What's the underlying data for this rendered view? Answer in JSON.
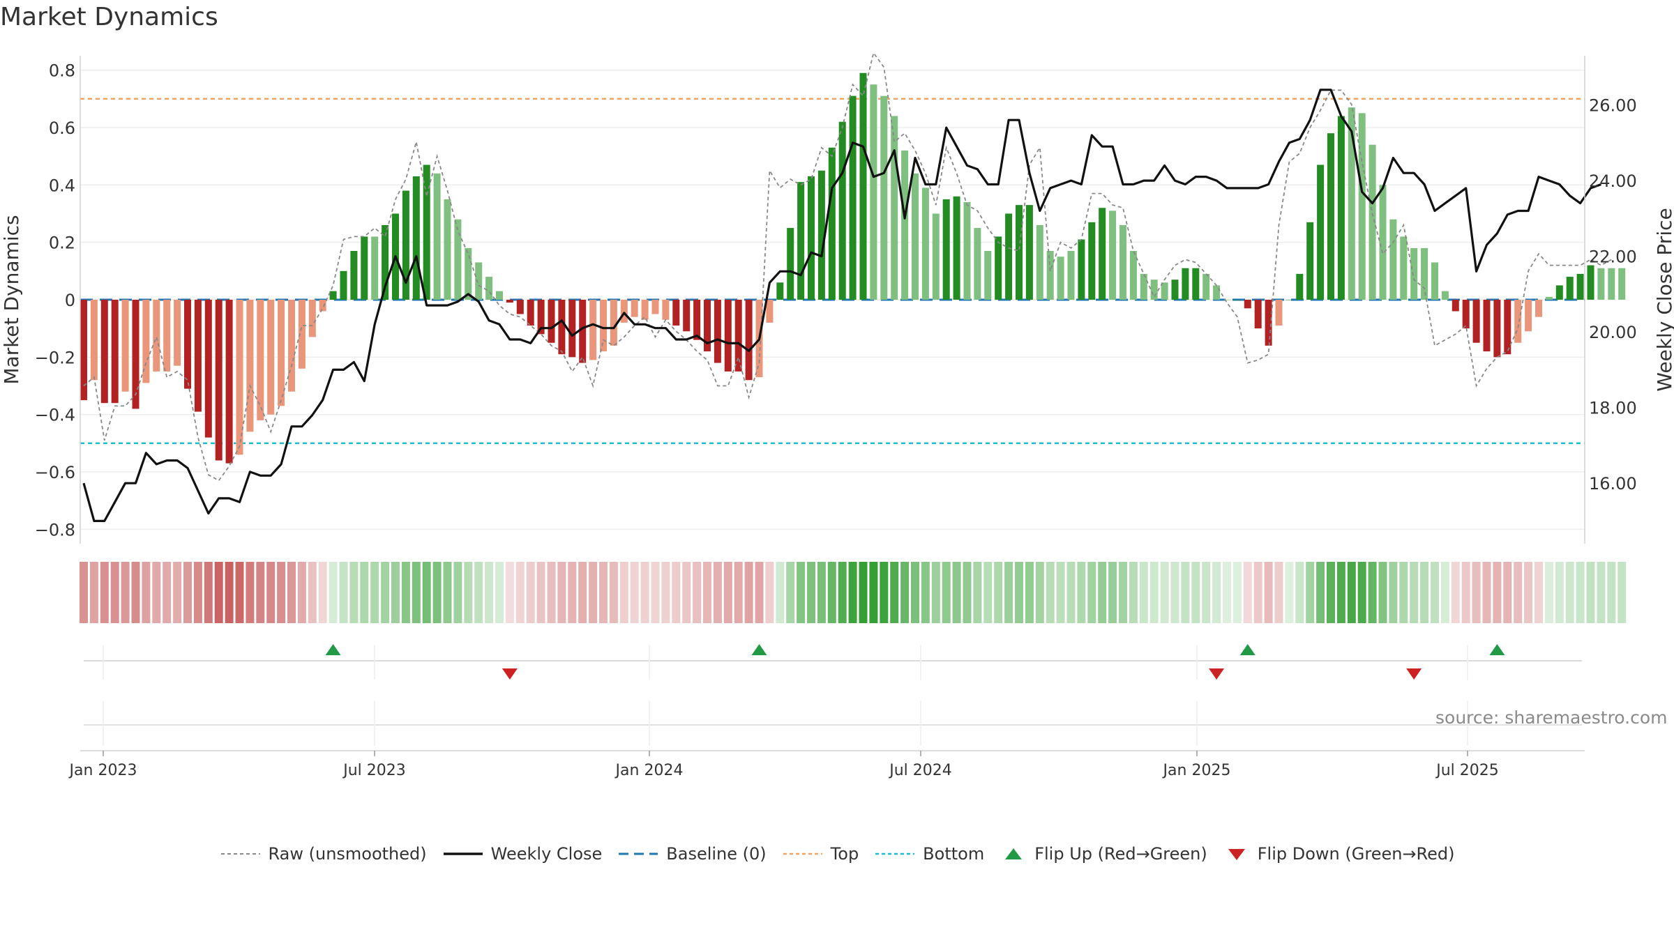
{
  "chart_data": {
    "type": "bar",
    "title": "Market Dynamics",
    "source": "source: sharemaestro.com",
    "ylabel": "Market Dynamics",
    "ylabel_right": "Weekly Close Price",
    "ylim": [
      -0.85,
      0.85
    ],
    "ylim_right": [
      14.4,
      27.3
    ],
    "y_ticks": [
      -0.8,
      -0.6,
      -0.4,
      -0.2,
      0,
      0.2,
      0.4,
      0.6,
      0.8
    ],
    "y_tick_labels": [
      "−0.8",
      "−0.6",
      "−0.4",
      "−0.2",
      "0",
      "0.2",
      "0.4",
      "0.6",
      "0.8"
    ],
    "y_ticks_right": [
      16,
      18,
      20,
      22,
      24,
      26
    ],
    "y_tick_labels_right": [
      "16.00",
      "18.00",
      "20.00",
      "22.00",
      "24.00",
      "26.00"
    ],
    "x_tick_labels": [
      "Jan 2023",
      "Jul 2023",
      "Jan 2024",
      "Jul 2024",
      "Jan 2025",
      "Jul 2025"
    ],
    "x_tick_weeks": [
      0,
      26,
      52,
      78,
      104,
      130
    ],
    "first_week": "2023-01-02",
    "top_level": 0.7,
    "bottom_level": -0.5,
    "baseline": 0,
    "bar_colors": {
      "strong_red": "#b22222",
      "weak_red": "#e9967a",
      "strong_green": "#228b22",
      "weak_green": "#7fbf7f"
    },
    "line_colors": {
      "close": "#111111",
      "raw": "#888888",
      "baseline": "#1f77b4",
      "top": "#f4a460",
      "bottom": "#17becf",
      "flip_up": "#229944",
      "flip_down": "#cc2222"
    },
    "bar_values": [
      -0.35,
      -0.28,
      -0.36,
      -0.36,
      -0.32,
      -0.38,
      -0.29,
      -0.25,
      -0.25,
      -0.23,
      -0.31,
      -0.39,
      -0.48,
      -0.56,
      -0.57,
      -0.54,
      -0.46,
      -0.42,
      -0.4,
      -0.37,
      -0.32,
      -0.24,
      -0.13,
      -0.04,
      0.03,
      0.1,
      0.17,
      0.22,
      0.22,
      0.26,
      0.3,
      0.38,
      0.43,
      0.47,
      0.44,
      0.35,
      0.28,
      0.18,
      0.13,
      0.08,
      0.03,
      -0.01,
      -0.05,
      -0.09,
      -0.12,
      -0.15,
      -0.19,
      -0.2,
      -0.22,
      -0.21,
      -0.18,
      -0.16,
      -0.08,
      -0.06,
      -0.07,
      -0.05,
      -0.07,
      -0.09,
      -0.11,
      -0.14,
      -0.18,
      -0.22,
      -0.25,
      -0.25,
      -0.28,
      -0.27,
      -0.08,
      0.06,
      0.25,
      0.41,
      0.43,
      0.45,
      0.53,
      0.62,
      0.71,
      0.79,
      0.75,
      0.71,
      0.64,
      0.52,
      0.44,
      0.39,
      0.3,
      0.35,
      0.36,
      0.34,
      0.25,
      0.17,
      0.22,
      0.3,
      0.33,
      0.33,
      0.26,
      0.17,
      0.15,
      0.17,
      0.21,
      0.27,
      0.32,
      0.31,
      0.26,
      0.17,
      0.09,
      0.07,
      0.06,
      0.07,
      0.11,
      0.11,
      0.09,
      0.05,
      0,
      0,
      -0.03,
      -0.1,
      -0.16,
      -0.09,
      0,
      0.09,
      0.27,
      0.47,
      0.58,
      0.64,
      0.67,
      0.65,
      0.54,
      0.4,
      0.28,
      0.22,
      0.18,
      0.18,
      0.13,
      0.03,
      -0.04,
      -0.1,
      -0.15,
      -0.18,
      -0.2,
      -0.19,
      -0.15,
      -0.11,
      -0.06,
      0.01,
      0.05,
      0.08,
      0.09,
      0.12,
      0.11,
      0.11,
      0.11
    ],
    "bar_strength": [
      "s",
      "w",
      "s",
      "s",
      "w",
      "s",
      "w",
      "w",
      "w",
      "w",
      "s",
      "s",
      "s",
      "s",
      "s",
      "w",
      "w",
      "w",
      "w",
      "w",
      "w",
      "w",
      "w",
      "w",
      "s",
      "s",
      "s",
      "s",
      "w",
      "s",
      "s",
      "s",
      "s",
      "s",
      "w",
      "w",
      "w",
      "w",
      "w",
      "w",
      "w",
      "s",
      "s",
      "s",
      "s",
      "s",
      "s",
      "s",
      "s",
      "w",
      "w",
      "w",
      "w",
      "w",
      "w",
      "w",
      "w",
      "s",
      "s",
      "s",
      "s",
      "s",
      "s",
      "s",
      "s",
      "w",
      "w",
      "s",
      "s",
      "s",
      "s",
      "s",
      "s",
      "s",
      "s",
      "s",
      "w",
      "w",
      "w",
      "w",
      "w",
      "w",
      "w",
      "s",
      "s",
      "w",
      "w",
      "w",
      "s",
      "s",
      "s",
      "s",
      "w",
      "w",
      "w",
      "w",
      "s",
      "s",
      "s",
      "w",
      "w",
      "w",
      "w",
      "w",
      "w",
      "s",
      "s",
      "s",
      "w",
      "w",
      "w",
      "s",
      "s",
      "s",
      "s",
      "w",
      "s",
      "s",
      "s",
      "s",
      "s",
      "s",
      "w",
      "w",
      "w",
      "w",
      "w",
      "w",
      "w",
      "w",
      "w",
      "w",
      "s",
      "s",
      "s",
      "s",
      "s",
      "s",
      "w",
      "w",
      "w",
      "w",
      "s",
      "s",
      "s",
      "s",
      "w",
      "w",
      "w"
    ],
    "raw_values": [
      -0.3,
      -0.27,
      -0.49,
      -0.37,
      -0.37,
      -0.33,
      -0.22,
      -0.13,
      -0.27,
      -0.25,
      -0.28,
      -0.48,
      -0.61,
      -0.63,
      -0.58,
      -0.51,
      -0.3,
      -0.37,
      -0.46,
      -0.35,
      -0.23,
      -0.09,
      -0.09,
      -0.03,
      0.05,
      0.21,
      0.22,
      0.22,
      0.25,
      0.22,
      0.35,
      0.42,
      0.55,
      0.36,
      0.5,
      0.38,
      0.24,
      0.16,
      0.05,
      0.03,
      -0.02,
      -0.05,
      -0.06,
      -0.09,
      -0.12,
      -0.16,
      -0.18,
      -0.25,
      -0.2,
      -0.3,
      -0.14,
      -0.16,
      -0.13,
      -0.09,
      -0.06,
      -0.13,
      -0.07,
      -0.11,
      -0.14,
      -0.18,
      -0.21,
      -0.3,
      -0.3,
      -0.2,
      -0.34,
      -0.22,
      0.45,
      0.39,
      0.42,
      0.4,
      0.42,
      0.53,
      0.5,
      0.6,
      0.75,
      0.71,
      0.86,
      0.81,
      0.55,
      0.58,
      0.52,
      0.44,
      0.33,
      0.53,
      0.44,
      0.33,
      0.31,
      0.25,
      0.2,
      0.18,
      0.17,
      0.47,
      0.53,
      0.1,
      0.2,
      0.18,
      0.21,
      0.37,
      0.37,
      0.33,
      0.32,
      0.17,
      0.09,
      0.01,
      0.07,
      0.12,
      0.14,
      0.13,
      0.09,
      0.05,
      -0.01,
      -0.06,
      -0.22,
      -0.21,
      -0.19,
      0.26,
      0.48,
      0.51,
      0.6,
      0.66,
      0.73,
      0.73,
      0.68,
      0.48,
      0.3,
      0.16,
      0.2,
      0.26,
      0.07,
      0.04,
      -0.16,
      -0.14,
      -0.12,
      -0.09,
      -0.3,
      -0.24,
      -0.2,
      -0.18,
      -0.1,
      0.1,
      0.16,
      0.12,
      0.12,
      0.12,
      0.12,
      0.14,
      0.12,
      0.14
    ],
    "close_values": [
      16,
      15,
      15,
      15.5,
      16,
      16,
      16.8,
      16.5,
      16.6,
      16.6,
      16.4,
      15.8,
      15.2,
      15.6,
      15.6,
      15.5,
      16.3,
      16.2,
      16.2,
      16.5,
      17.5,
      17.5,
      17.8,
      18.2,
      19,
      19,
      19.2,
      18.7,
      20.2,
      21.2,
      22,
      21.3,
      22,
      20.7,
      20.7,
      20.7,
      20.8,
      21,
      20.8,
      20.3,
      20.2,
      19.8,
      19.8,
      19.7,
      20.1,
      20.1,
      20.3,
      19.9,
      20.1,
      20.2,
      20.1,
      20.1,
      20.5,
      20.2,
      20.2,
      20.1,
      20.1,
      19.8,
      19.8,
      19.9,
      19.7,
      19.8,
      19.7,
      19.7,
      19.5,
      19.8,
      21.3,
      21.6,
      21.6,
      21.5,
      22.1,
      22,
      23.8,
      24.2,
      25,
      24.9,
      24.1,
      24.2,
      24.8,
      23,
      24.6,
      23.9,
      23.9,
      25.4,
      24.9,
      24.4,
      24.3,
      23.9,
      23.9,
      25.6,
      25.6,
      24.2,
      23.2,
      23.8,
      23.9,
      24,
      23.9,
      25.2,
      24.9,
      24.9,
      23.9,
      23.9,
      24,
      24,
      24.4,
      24,
      23.9,
      24.1,
      24.1,
      24,
      23.8,
      23.8,
      23.8,
      23.8,
      23.9,
      24.5,
      25,
      25.1,
      25.6,
      26.4,
      26.4,
      25.7,
      25.3,
      23.7,
      23.4,
      23.8,
      24.6,
      24.2,
      24.2,
      23.9,
      23.2,
      23.4,
      23.6,
      23.8,
      21.6,
      22.3,
      22.6,
      23.1,
      23.2,
      23.2,
      24.1,
      24,
      23.9,
      23.6,
      23.4,
      23.8,
      23.9
    ],
    "flip_up_weeks": [
      24,
      65,
      112,
      136
    ],
    "flip_down_weeks": [
      41,
      109,
      128
    ],
    "legend": [
      {
        "key": "raw",
        "label": "Raw (unsmoothed)"
      },
      {
        "key": "close",
        "label": "Weekly Close"
      },
      {
        "key": "baseline",
        "label": "Baseline (0)"
      },
      {
        "key": "top",
        "label": "Top"
      },
      {
        "key": "bottom",
        "label": "Bottom"
      },
      {
        "key": "flip_up",
        "label": "Flip Up (Red→Green)"
      },
      {
        "key": "flip_down",
        "label": "Flip Down (Green→Red)"
      }
    ]
  }
}
